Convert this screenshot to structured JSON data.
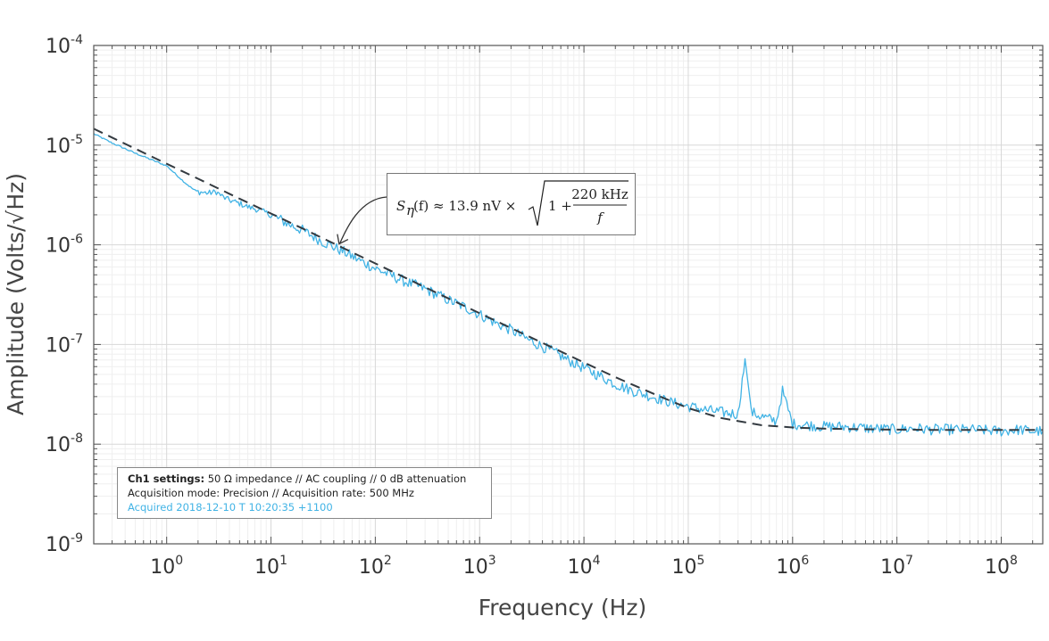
{
  "chart_data": {
    "type": "line",
    "title": "",
    "xlabel": "Frequency (Hz)",
    "ylabel": "Amplitude (Volts/√Hz)",
    "x_scale": "log",
    "y_scale": "log",
    "xlim": [
      0.2,
      250000000
    ],
    "ylim": [
      1e-09,
      0.0001
    ],
    "grid": true,
    "x_ticks": [
      {
        "value": 1,
        "base": "10",
        "exp": "0"
      },
      {
        "value": 10,
        "base": "10",
        "exp": "1"
      },
      {
        "value": 100,
        "base": "10",
        "exp": "2"
      },
      {
        "value": 1000,
        "base": "10",
        "exp": "3"
      },
      {
        "value": 10000,
        "base": "10",
        "exp": "4"
      },
      {
        "value": 100000,
        "base": "10",
        "exp": "5"
      },
      {
        "value": 1000000,
        "base": "10",
        "exp": "6"
      },
      {
        "value": 10000000,
        "base": "10",
        "exp": "7"
      },
      {
        "value": 100000000,
        "base": "10",
        "exp": "8"
      }
    ],
    "y_ticks": [
      {
        "value": 1e-09,
        "base": "10",
        "exp": "-9"
      },
      {
        "value": 1e-08,
        "base": "10",
        "exp": "-8"
      },
      {
        "value": 1e-07,
        "base": "10",
        "exp": "-7"
      },
      {
        "value": 1e-06,
        "base": "10",
        "exp": "-6"
      },
      {
        "value": 1e-05,
        "base": "10",
        "exp": "-5"
      },
      {
        "value": 0.0001,
        "base": "10",
        "exp": "-4"
      }
    ],
    "series": [
      {
        "style": "solid",
        "color": "#41b3e5",
        "x": [
          0.2,
          0.3,
          0.5,
          0.7,
          1.0,
          1.2,
          1.5,
          1.8,
          2.0,
          2.5,
          3.0,
          3.5,
          4.0,
          5.0,
          6.0,
          7.0,
          8.0,
          10,
          15,
          20,
          30,
          40,
          50,
          70,
          100,
          150,
          200,
          250,
          300,
          500,
          700,
          1000,
          1500,
          2000,
          3000,
          5000,
          7000,
          10000,
          15000,
          20000,
          30000,
          50000,
          70000,
          100000,
          150000,
          200000,
          300000,
          350000,
          400000,
          500000,
          700000,
          800000,
          1000000,
          2000000,
          3000000,
          5000000,
          10000000,
          15000000,
          20000000,
          30000000,
          50000000,
          100000000,
          150000000,
          200000000,
          250000000
        ],
        "y": [
          1.3e-05,
          1.05e-05,
          8.3e-06,
          7.2e-06,
          6.2e-06,
          5.2e-06,
          4.2e-06,
          3.6e-06,
          3.4e-06,
          3.3e-06,
          3.4e-06,
          3e-06,
          2.8e-06,
          2.6e-06,
          2.4e-06,
          2.3e-06,
          2.2e-06,
          2e-06,
          1.6e-06,
          1.4e-06,
          1.1e-06,
          9.5e-07,
          8.5e-07,
          7e-07,
          5.8e-07,
          4.8e-07,
          4.2e-07,
          3.9e-07,
          3.6e-07,
          2.8e-07,
          2.4e-07,
          2e-07,
          1.6e-07,
          1.4e-07,
          1.1e-07,
          8.5e-08,
          7e-08,
          5.8e-08,
          4.7e-08,
          4e-08,
          3.4e-08,
          2.9e-08,
          2.6e-08,
          2.4e-08,
          2.2e-08,
          2.1e-08,
          2e-08,
          7.2e-08,
          2.1e-08,
          1.9e-08,
          1.7e-08,
          3.4e-08,
          1.6e-08,
          1.5e-08,
          1.5e-08,
          1.45e-08,
          1.4e-08,
          1.45e-08,
          1.4e-08,
          1.4e-08,
          1.4e-08,
          1.35e-08,
          1.4e-08,
          1.35e-08,
          1.35e-08
        ]
      },
      {
        "style": "dashed",
        "color": "#333a40",
        "x": [
          0.2,
          0.5,
          1,
          2,
          5,
          10,
          20,
          50,
          100,
          200,
          500,
          1000,
          2000,
          5000,
          10000,
          20000,
          50000,
          100000,
          200000,
          500000,
          1000000,
          2000000,
          5000000,
          10000000,
          20000000,
          50000000,
          100000000,
          250000000
        ],
        "y": [
          1.46e-05,
          9.2e-06,
          6.5e-06,
          4.6e-06,
          2.9e-06,
          2.06e-06,
          1.46e-06,
          9.2e-07,
          6.5e-07,
          4.6e-07,
          2.9e-07,
          2.06e-07,
          1.46e-07,
          9.3e-08,
          6.6e-08,
          4.7e-08,
          3.1e-08,
          2.3e-08,
          1.84e-08,
          1.55e-08,
          1.47e-08,
          1.43e-08,
          1.41e-08,
          1.4e-08,
          1.39e-08,
          1.39e-08,
          1.39e-08,
          1.39e-08
        ]
      }
    ],
    "annotation": {
      "formula": "S_η(f) ≈ 13.9 nV × √(1 + 220 kHz / f)",
      "lhs": "S",
      "lhs_sub": "η",
      "lhs_arg": "(f) ≈ 13.9 nV ×",
      "one_plus": "1 +",
      "numerator": "220 kHz",
      "denominator": "f",
      "arrow_target": {
        "x": 45,
        "y": 1e-06
      }
    }
  },
  "settings": {
    "line1_bold": "Ch1 settings:",
    "line1_rest": " 50 Ω impedance  //  AC coupling  //  0 dB attenuation",
    "line2": "Acquisition mode: Precision  //  Acquisition rate: 500 MHz",
    "line3": "Acquired 2018-12-10 T 10:20:35 +1100"
  },
  "colors": {
    "measured": "#41b3e5",
    "fit": "#333a40",
    "grid_major": "#d8d8d8",
    "grid_minor": "#efefef",
    "axis": "#555555"
  }
}
